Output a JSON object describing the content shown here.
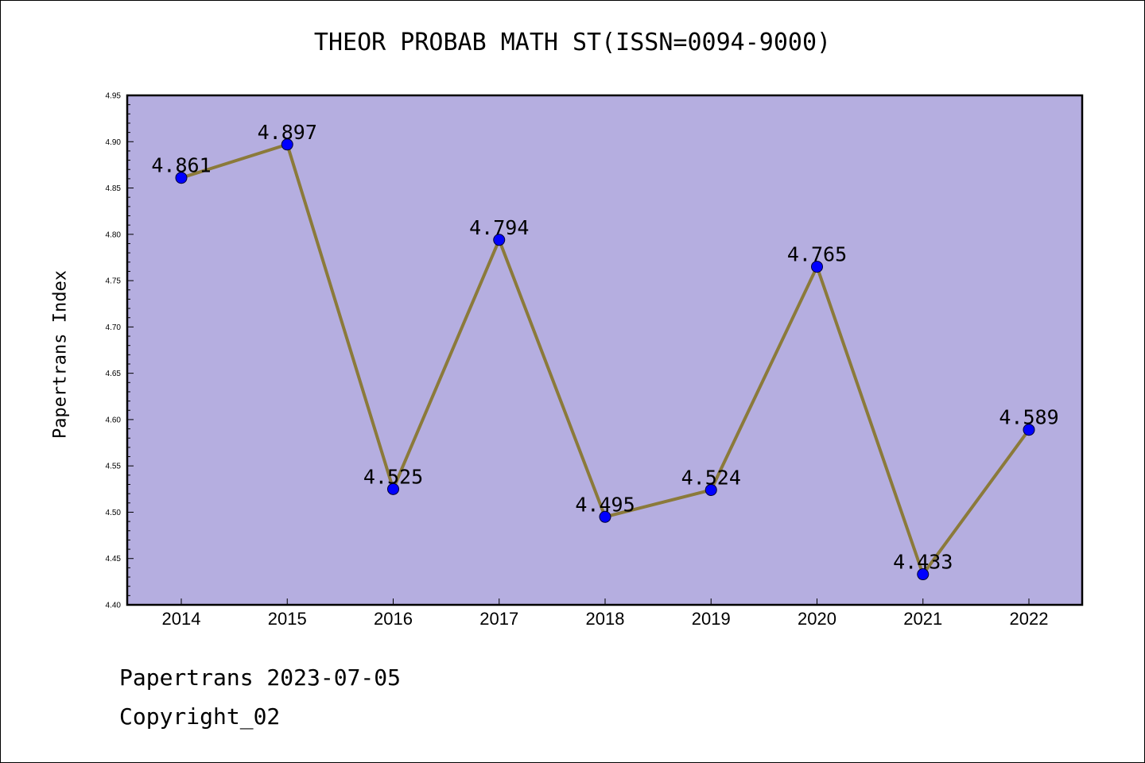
{
  "chart_data": {
    "type": "line",
    "title": "THEOR PROBAB MATH ST(ISSN=0094-9000)",
    "xlabel": "",
    "ylabel": "Papertrans Index",
    "categories": [
      "2014",
      "2015",
      "2016",
      "2017",
      "2018",
      "2019",
      "2020",
      "2021",
      "2022"
    ],
    "series": [
      {
        "values": [
          4.861,
          4.897,
          4.525,
          4.794,
          4.495,
          4.524,
          4.765,
          4.433,
          4.589
        ],
        "labels": [
          "4.861",
          "4.897",
          "4.525",
          "4.794",
          "4.495",
          "4.524",
          "4.765",
          "4.433",
          "4.589"
        ]
      }
    ],
    "ylim": [
      4.4,
      4.95
    ],
    "yticks": [
      "4.40",
      "4.45",
      "4.50",
      "4.55",
      "4.60",
      "4.65",
      "4.70",
      "4.75",
      "4.80",
      "4.85",
      "4.90",
      "4.95"
    ],
    "grid": false,
    "legend": "none",
    "colors": {
      "plot_background": "#b5aee0",
      "line": "#8b7a3a",
      "marker": "#0000ff"
    }
  },
  "footer": {
    "date_line": "Papertrans 2023-07-05",
    "copyright": "Copyright_02"
  }
}
